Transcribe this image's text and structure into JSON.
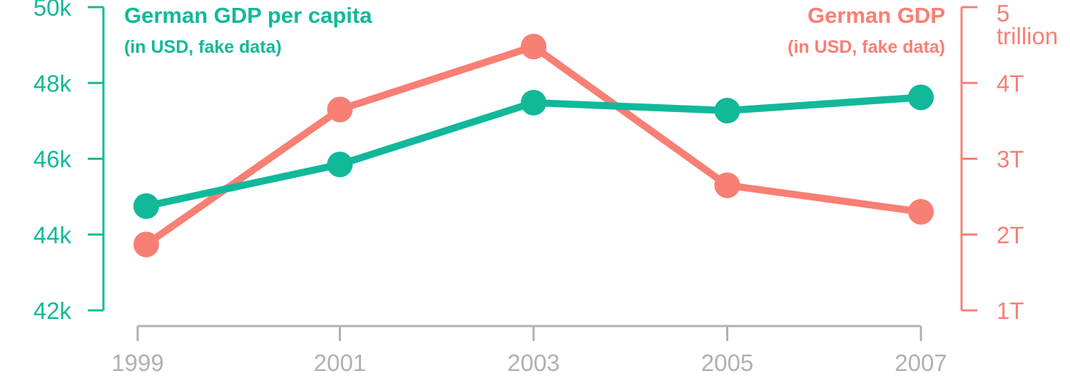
{
  "chart_data": {
    "type": "line",
    "x": [
      "1999",
      "2001",
      "2003",
      "2005",
      "2007"
    ],
    "y_left": {
      "title": "German GDP per capita",
      "subtitle": "(in USD, fake data)",
      "ticks": [
        "42k",
        "44k",
        "46k",
        "48k",
        "50k"
      ],
      "range": [
        42000,
        50000
      ],
      "color": "#12b89a"
    },
    "y_right": {
      "title": "German GDP",
      "subtitle": "(in USD, fake data)",
      "ticks": [
        "1T",
        "2T",
        "3T",
        "4T"
      ],
      "top_tick": [
        "5",
        "trillion"
      ],
      "range": [
        1,
        5
      ],
      "color": "#f87f73"
    },
    "x_axis_color": "#b0b0b0",
    "series": [
      {
        "name": "German GDP per capita",
        "axis": "left",
        "color": "#12b89a",
        "values": [
          44750,
          45850,
          47480,
          47270,
          47620
        ]
      },
      {
        "name": "German GDP",
        "axis": "right",
        "color": "#f87f73",
        "values": [
          1.87,
          3.65,
          4.48,
          2.65,
          2.3
        ]
      }
    ],
    "grid": false
  }
}
